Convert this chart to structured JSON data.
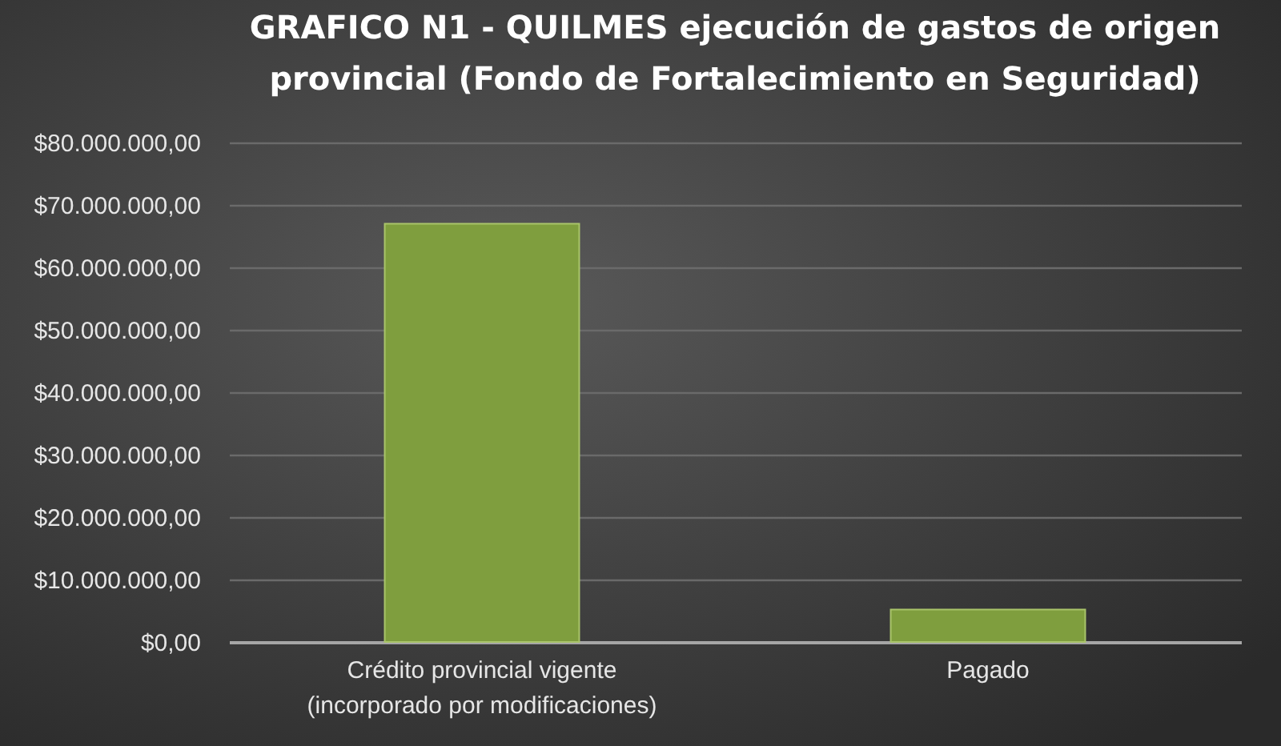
{
  "chart_data": {
    "type": "bar",
    "title": "GRAFICO  N1 - QUILMES ejecución de gastos de origen provincial (Fondo de Fortalecimiento en Seguridad)",
    "categories": [
      "Crédito provincial vigente\n(incorporado por modificaciones)",
      "Pagado"
    ],
    "values": [
      67000000,
      5200000
    ],
    "color": "#7f9e3e",
    "ylim": [
      0,
      80000000
    ],
    "yticks": [
      {
        "value": 0,
        "label": "$0,00"
      },
      {
        "value": 10000000,
        "label": "$10.000.000,00"
      },
      {
        "value": 20000000,
        "label": "$20.000.000,00"
      },
      {
        "value": 30000000,
        "label": "$30.000.000,00"
      },
      {
        "value": 40000000,
        "label": "$40.000.000,00"
      },
      {
        "value": 50000000,
        "label": "$50.000.000,00"
      },
      {
        "value": 60000000,
        "label": "$60.000.000,00"
      },
      {
        "value": 70000000,
        "label": "$70.000.000,00"
      },
      {
        "value": 80000000,
        "label": "$80.000.000,00"
      }
    ],
    "grid": "y"
  }
}
